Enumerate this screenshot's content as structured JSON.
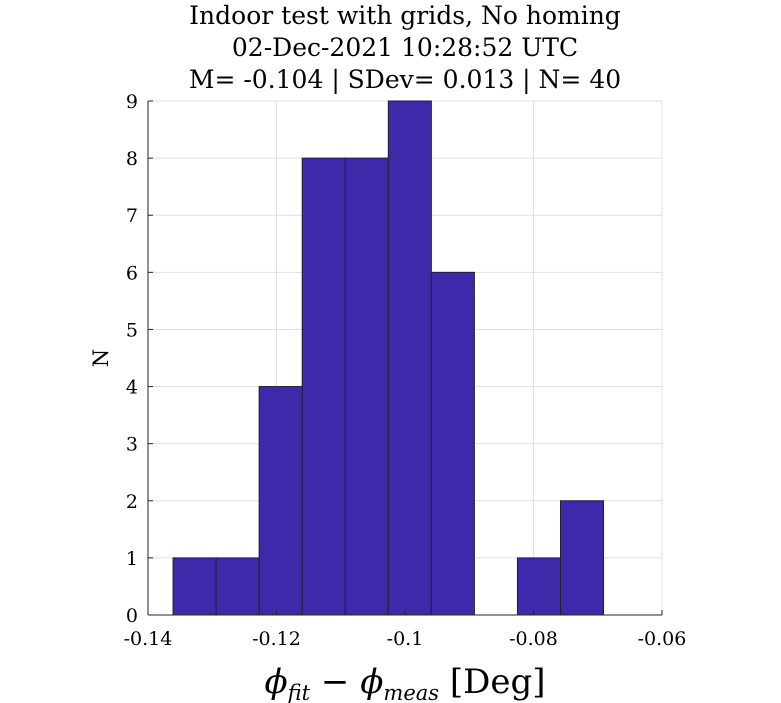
{
  "chart_data": {
    "type": "bar",
    "title": [
      "Indoor test with grids, No homing",
      "02-Dec-2021 10:28:52 UTC",
      "M= -0.104 | SDev= 0.013 | N= 40"
    ],
    "xlabel": {
      "phi1": "ϕ",
      "sub1": "fit",
      "op": " − ",
      "phi2": "ϕ",
      "sub2": "meas",
      "unit": " [Deg]"
    },
    "ylabel": "N",
    "xlim": [
      -0.14,
      -0.06
    ],
    "ylim": [
      0,
      9
    ],
    "xticks": [
      -0.14,
      -0.12,
      -0.1,
      -0.08,
      -0.06
    ],
    "xtick_labels": [
      "-0.14",
      "-0.12",
      "-0.1",
      "-0.08",
      "-0.06"
    ],
    "yticks": [
      0,
      1,
      2,
      3,
      4,
      5,
      6,
      7,
      8,
      9
    ],
    "grid": true,
    "bar_color": "#3d2aab",
    "bins": [
      {
        "x0": -0.1361,
        "x1": -0.1294,
        "value": 1
      },
      {
        "x0": -0.1294,
        "x1": -0.1227,
        "value": 1
      },
      {
        "x0": -0.1227,
        "x1": -0.116,
        "value": 4
      },
      {
        "x0": -0.116,
        "x1": -0.1093,
        "value": 8
      },
      {
        "x0": -0.1093,
        "x1": -0.1026,
        "value": 8
      },
      {
        "x0": -0.1026,
        "x1": -0.0959,
        "value": 9
      },
      {
        "x0": -0.0959,
        "x1": -0.0892,
        "value": 6
      },
      {
        "x0": -0.0892,
        "x1": -0.0825,
        "value": 0
      },
      {
        "x0": -0.0825,
        "x1": -0.0758,
        "value": 1
      },
      {
        "x0": -0.0758,
        "x1": -0.0691,
        "value": 2
      }
    ]
  }
}
